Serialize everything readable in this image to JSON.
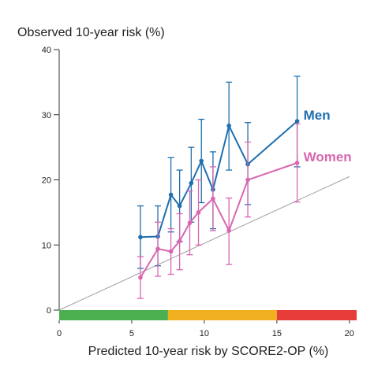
{
  "chart_data": {
    "type": "line",
    "ylabel": "Observed 10-year risk (%)",
    "xlabel": "Predicted 10-year risk by SCORE2-OP (%)",
    "xlim": [
      0,
      20.5
    ],
    "ylim": [
      0,
      40
    ],
    "xticks": [
      "0",
      "5",
      "10",
      "15",
      "20"
    ],
    "yticks": [
      "0",
      "10",
      "20",
      "30",
      "40"
    ],
    "grid": false,
    "reference_line": {
      "x": [
        0,
        20
      ],
      "y": [
        0,
        20.5
      ],
      "color": "#a0a0a0"
    },
    "risk_bands": [
      {
        "from": 0,
        "to": 7.5,
        "color": "#4cb050"
      },
      {
        "from": 7.5,
        "to": 15,
        "color": "#f0b020"
      },
      {
        "from": 15,
        "to": 20.5,
        "color": "#e83c3a"
      }
    ],
    "series": [
      {
        "name": "Men",
        "color": "#1f6fae",
        "points": [
          {
            "x": 5.6,
            "y": 11.2,
            "lo": 6.4,
            "hi": 16.0
          },
          {
            "x": 6.8,
            "y": 11.3,
            "lo": 6.8,
            "hi": 16.0
          },
          {
            "x": 7.7,
            "y": 17.7,
            "lo": 12.0,
            "hi": 23.4
          },
          {
            "x": 8.3,
            "y": 16.0,
            "lo": 10.5,
            "hi": 21.5
          },
          {
            "x": 9.1,
            "y": 19.5,
            "lo": 13.5,
            "hi": 25.0
          },
          {
            "x": 9.8,
            "y": 22.9,
            "lo": 16.5,
            "hi": 29.3
          },
          {
            "x": 10.6,
            "y": 18.5,
            "lo": 12.5,
            "hi": 24.3
          },
          {
            "x": 11.7,
            "y": 28.3,
            "lo": 21.5,
            "hi": 35.0
          },
          {
            "x": 13.0,
            "y": 22.4,
            "lo": 16.2,
            "hi": 28.8
          },
          {
            "x": 16.4,
            "y": 29.0,
            "lo": 22.0,
            "hi": 35.9
          }
        ]
      },
      {
        "name": "Women",
        "color": "#d966b0",
        "points": [
          {
            "x": 5.6,
            "y": 5.0,
            "lo": 1.8,
            "hi": 8.2
          },
          {
            "x": 6.8,
            "y": 9.4,
            "lo": 5.2,
            "hi": 13.5
          },
          {
            "x": 7.7,
            "y": 9.0,
            "lo": 5.5,
            "hi": 12.5
          },
          {
            "x": 8.3,
            "y": 10.6,
            "lo": 6.2,
            "hi": 14.8
          },
          {
            "x": 9.0,
            "y": 13.4,
            "lo": 8.5,
            "hi": 18.3
          },
          {
            "x": 9.6,
            "y": 15.0,
            "lo": 10.0,
            "hi": 20.0
          },
          {
            "x": 10.6,
            "y": 17.1,
            "lo": 12.2,
            "hi": 22.0
          },
          {
            "x": 11.7,
            "y": 12.2,
            "lo": 7.0,
            "hi": 17.2
          },
          {
            "x": 13.0,
            "y": 20.0,
            "lo": 14.3,
            "hi": 25.8
          },
          {
            "x": 16.4,
            "y": 22.6,
            "lo": 16.6,
            "hi": 28.6
          }
        ]
      }
    ]
  }
}
